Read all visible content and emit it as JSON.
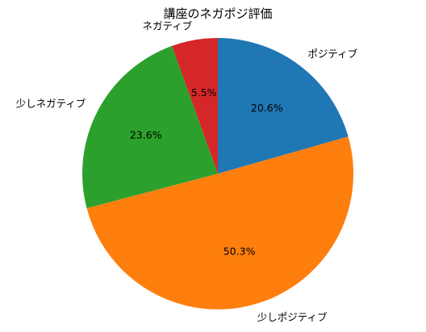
{
  "chart_data": {
    "type": "pie",
    "title": "講座のネガポジ評価",
    "start_angle_deg": 90,
    "direction": "clockwise",
    "slices": [
      {
        "label": "ポジティブ",
        "value": 20.6,
        "pct_text": "20.6%",
        "color": "#1f77b4"
      },
      {
        "label": "少しポジティブ",
        "value": 50.3,
        "pct_text": "50.3%",
        "color": "#ff7f0e"
      },
      {
        "label": "少しネガティブ",
        "value": 23.6,
        "pct_text": "23.6%",
        "color": "#2ca02c"
      },
      {
        "label": "ネガティブ",
        "value": 5.5,
        "pct_text": "5.5%",
        "color": "#d62728"
      }
    ]
  }
}
